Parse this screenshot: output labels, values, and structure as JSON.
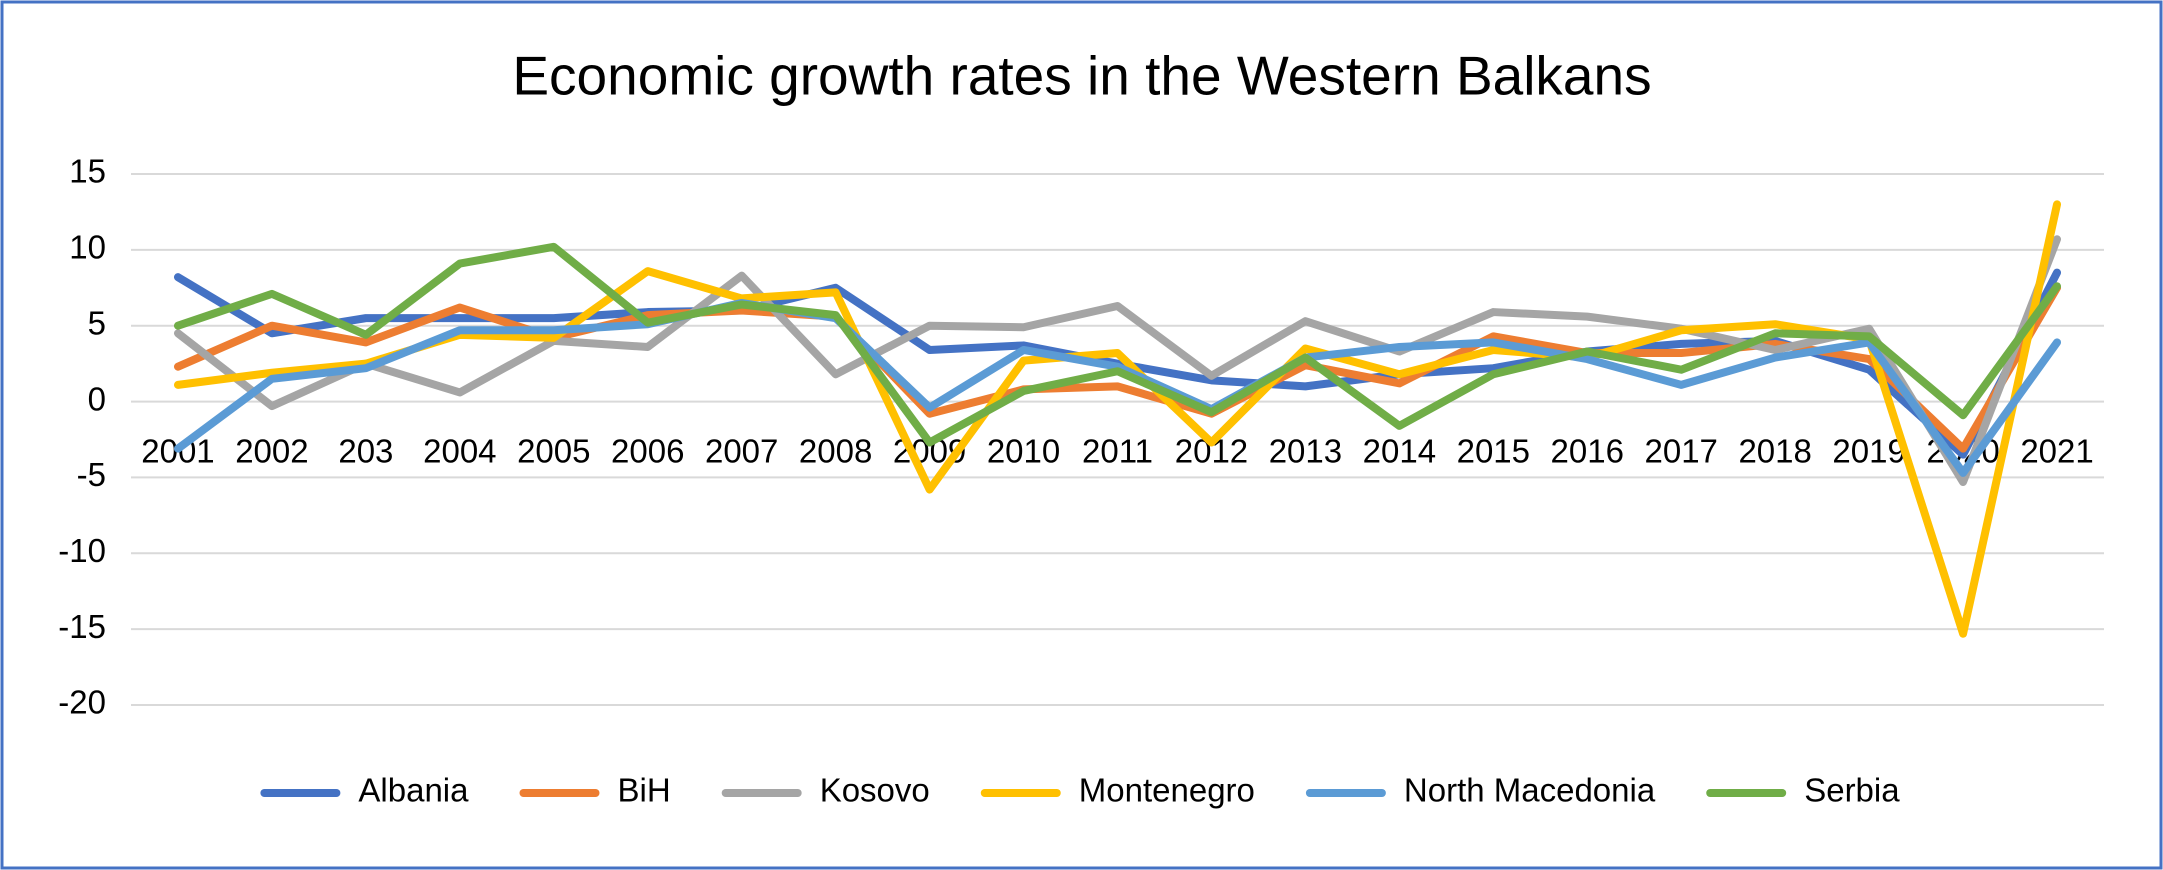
{
  "chart_data": {
    "type": "line",
    "title": "Economic growth rates in the Western Balkans",
    "categories": [
      "2001",
      "2002",
      "203",
      "2004",
      "2005",
      "2006",
      "2007",
      "2008",
      "2009",
      "2010",
      "2011",
      "2012",
      "2013",
      "2014",
      "2015",
      "2016",
      "2017",
      "2018",
      "2019",
      "2020",
      "2021"
    ],
    "series": [
      {
        "name": "Albania",
        "color": "#4472c4",
        "values": [
          8.2,
          4.5,
          5.5,
          5.5,
          5.5,
          5.9,
          6.0,
          7.5,
          3.4,
          3.7,
          2.5,
          1.4,
          1.0,
          1.8,
          2.2,
          3.3,
          3.8,
          4.0,
          2.1,
          -3.5,
          8.5
        ]
      },
      {
        "name": "BiH",
        "color": "#ed7d31",
        "values": [
          2.3,
          5.0,
          3.9,
          6.2,
          4.2,
          5.7,
          6.0,
          5.6,
          -0.8,
          0.8,
          1.0,
          -0.8,
          2.4,
          1.2,
          4.3,
          3.2,
          3.2,
          3.8,
          2.8,
          -3.1,
          7.5
        ]
      },
      {
        "name": "Kosovo",
        "color": "#a5a5a5",
        "values": [
          4.5,
          -0.3,
          2.5,
          0.6,
          4.0,
          3.6,
          8.3,
          1.8,
          5.0,
          4.9,
          6.3,
          1.7,
          5.3,
          3.3,
          5.9,
          5.6,
          4.8,
          3.4,
          4.8,
          -5.3,
          10.7
        ]
      },
      {
        "name": "Montenegro",
        "color": "#ffc000",
        "values": [
          1.1,
          1.9,
          2.5,
          4.4,
          4.2,
          8.6,
          6.8,
          7.2,
          -5.8,
          2.7,
          3.2,
          -2.7,
          3.5,
          1.8,
          3.4,
          2.9,
          4.7,
          5.1,
          4.1,
          -15.3,
          13.0
        ]
      },
      {
        "name": "North Macedonia",
        "color": "#5b9bd5",
        "values": [
          -3.1,
          1.5,
          2.2,
          4.7,
          4.7,
          5.1,
          6.5,
          5.5,
          -0.4,
          3.4,
          2.3,
          -0.5,
          2.9,
          3.6,
          3.9,
          2.8,
          1.1,
          2.9,
          3.9,
          -4.7,
          3.9
        ]
      },
      {
        "name": "Serbia",
        "color": "#70ad47",
        "values": [
          5.0,
          7.1,
          4.4,
          9.1,
          10.2,
          5.2,
          6.4,
          5.7,
          -2.7,
          0.7,
          2.0,
          -0.7,
          2.9,
          -1.6,
          1.8,
          3.3,
          2.1,
          4.5,
          4.3,
          -0.9,
          7.6
        ]
      }
    ],
    "ylim": [
      -20,
      15
    ],
    "yticks": [
      -20,
      -15,
      -10,
      -5,
      0,
      5,
      10,
      15
    ],
    "grid": true,
    "legend": "bottom"
  }
}
